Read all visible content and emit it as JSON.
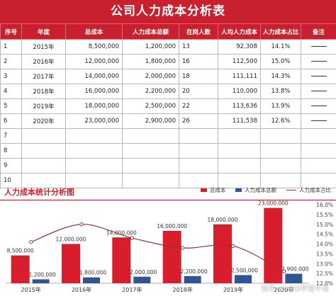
{
  "title": "公司人力成本分析表",
  "headers": [
    "序号",
    "年度",
    "总成本",
    "人力成本总额",
    "在岗人数",
    "人均人力成本",
    "人力成本占比",
    "备注"
  ],
  "rows": [
    {
      "no": "1",
      "year": "2015年",
      "total": "8,500,000",
      "hr": "1,200,000",
      "staff": "13",
      "per": "92,308",
      "ratio": "14.1%"
    },
    {
      "no": "2",
      "year": "2016年",
      "total": "12,000,000",
      "hr": "1,800,000",
      "staff": "16",
      "per": "112,500",
      "ratio": "15.0%"
    },
    {
      "no": "3",
      "year": "2017年",
      "total": "14,000,000",
      "hr": "2,000,000",
      "staff": "18",
      "per": "111,111",
      "ratio": "14.3%"
    },
    {
      "no": "4",
      "year": "2018年",
      "total": "16,000,000",
      "hr": "2,200,000",
      "staff": "20",
      "per": "110,000",
      "ratio": "13.8%"
    },
    {
      "no": "5",
      "year": "2019年",
      "total": "18,000,000",
      "hr": "2,500,000",
      "staff": "22",
      "per": "113,636",
      "ratio": "13.9%"
    },
    {
      "no": "6",
      "year": "2020年",
      "total": "23,000,000",
      "hr": "2,900,000",
      "staff": "26",
      "per": "111,538",
      "ratio": "12.6%"
    },
    {
      "no": "7"
    },
    {
      "no": "8"
    },
    {
      "no": "9"
    },
    {
      "no": "10"
    }
  ],
  "colors": {
    "accent": "#c8202e",
    "bar_total": "#d81e2c",
    "bar_hr": "#2f5597",
    "line": "#8b3a3a"
  },
  "watermark": "知乎 @HRD学堂牛哥",
  "chart_data": {
    "type": "bar",
    "title": "人力成本统计分析图",
    "categories": [
      "2015年",
      "2016年",
      "2017年",
      "2018年",
      "2019年",
      "2020年"
    ],
    "series": [
      {
        "name": "总成本",
        "type": "bar",
        "values": [
          8500000,
          12000000,
          14000000,
          16000000,
          18000000,
          23000000
        ],
        "labels": [
          "8,500,000",
          "12,000,000",
          "14,000,000",
          "16,000,000",
          "18,000,000",
          "23,000,000"
        ]
      },
      {
        "name": "人力成本总额",
        "type": "bar",
        "values": [
          1200000,
          1800000,
          2000000,
          2200000,
          2500000,
          2900000
        ],
        "labels": [
          "1,200,000",
          "1,800,000",
          "2,000,000",
          "2,200,000",
          "2,500,000",
          "2,900,000"
        ]
      },
      {
        "name": "人力成本占比",
        "type": "line",
        "axis": "right",
        "values": [
          14.1,
          15.0,
          14.3,
          13.8,
          13.9,
          12.6
        ]
      }
    ],
    "y_left": {
      "min": 0,
      "max": 24000000
    },
    "y_right": {
      "min": 12.0,
      "max": 16.0,
      "ticks": [
        "12.0%",
        "12.5%",
        "13.0%",
        "13.5%",
        "14.0%",
        "14.5%",
        "15.0%",
        "15.5%",
        "16.0%"
      ]
    },
    "legend_position": "top-right"
  }
}
